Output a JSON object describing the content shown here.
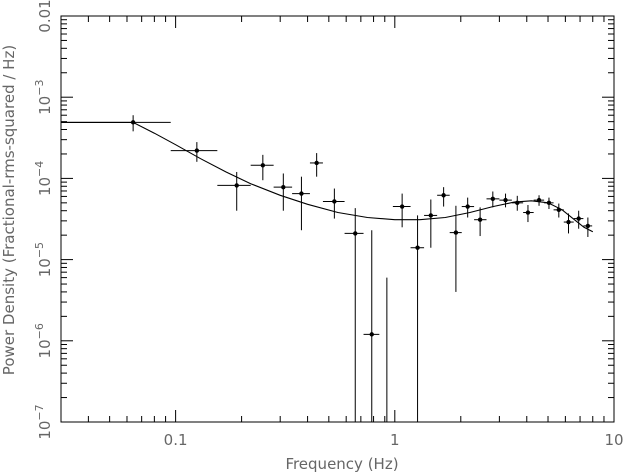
{
  "chart_data": {
    "type": "scatter",
    "title": "",
    "xlabel": "Frequency (Hz)",
    "ylabel": "Power Density (Fractional-rms-squared / Hz)",
    "xscale": "log",
    "yscale": "log",
    "xlim": [
      0.03,
      10
    ],
    "ylim": [
      1e-07,
      0.01
    ],
    "x_tick_labels": [
      {
        "value": 0.1,
        "label": "0.1"
      },
      {
        "value": 1,
        "label": "1"
      },
      {
        "value": 10,
        "label": "10"
      }
    ],
    "y_tick_labels": [
      {
        "value": 1e-07,
        "base": "10",
        "exp": "−7"
      },
      {
        "value": 1e-06,
        "base": "10",
        "exp": "−6"
      },
      {
        "value": 1e-05,
        "base": "10",
        "exp": "−5"
      },
      {
        "value": 0.0001,
        "base": "10",
        "exp": "−4"
      },
      {
        "value": 0.001,
        "base": "10",
        "exp": "−3"
      },
      {
        "value": 0.01,
        "base": "0.01",
        "exp": ""
      }
    ],
    "grid": false,
    "colors": {
      "data": "#000000",
      "axis": "#000000",
      "text": "#666666"
    },
    "points": [
      {
        "x": 0.064,
        "xlo": 0.03,
        "xhi": 0.095,
        "y": 0.00049,
        "ylo": 0.00038,
        "yhi": 0.0006
      },
      {
        "x": 0.125,
        "xlo": 0.095,
        "xhi": 0.155,
        "y": 0.00022,
        "ylo": 0.00016,
        "yhi": 0.00028
      },
      {
        "x": 0.19,
        "xlo": 0.155,
        "xhi": 0.22,
        "y": 8.2e-05,
        "ylo": 4e-05,
        "yhi": 0.00012
      },
      {
        "x": 0.25,
        "xlo": 0.22,
        "xhi": 0.28,
        "y": 0.000145,
        "ylo": 9.5e-05,
        "yhi": 0.000195
      },
      {
        "x": 0.31,
        "xlo": 0.28,
        "xhi": 0.34,
        "y": 7.8e-05,
        "ylo": 4e-05,
        "yhi": 0.000115
      },
      {
        "x": 0.375,
        "xlo": 0.34,
        "xhi": 0.41,
        "y": 6.5e-05,
        "ylo": 2.3e-05,
        "yhi": 0.000105
      },
      {
        "x": 0.44,
        "xlo": 0.41,
        "xhi": 0.47,
        "y": 0.000155,
        "ylo": 0.000105,
        "yhi": 0.000205
      },
      {
        "x": 0.53,
        "xlo": 0.47,
        "xhi": 0.59,
        "y": 5.2e-05,
        "ylo": 3.2e-05,
        "yhi": 7.5e-05
      },
      {
        "x": 0.66,
        "xlo": 0.59,
        "xhi": 0.72,
        "y": 2.1e-05,
        "ylo": 1e-07,
        "yhi": 4.3e-05
      },
      {
        "x": 0.785,
        "xlo": 0.72,
        "xhi": 0.85,
        "y": 1.2e-06,
        "ylo": 1e-07,
        "yhi": 2.3e-05
      },
      {
        "x": 0.92,
        "xlo": 0.92,
        "xhi": 0.92,
        "y": 3e-07,
        "ylo": 1e-07,
        "yhi": 6e-06,
        "marker": false
      },
      {
        "x": 1.08,
        "xlo": 0.98,
        "xhi": 1.18,
        "y": 4.5e-05,
        "ylo": 2.5e-05,
        "yhi": 6.5e-05
      },
      {
        "x": 1.27,
        "xlo": 1.18,
        "xhi": 1.36,
        "y": 1.4e-05,
        "ylo": 1e-07,
        "yhi": 3.5e-05
      },
      {
        "x": 1.46,
        "xlo": 1.36,
        "xhi": 1.56,
        "y": 3.5e-05,
        "ylo": 1.4e-05,
        "yhi": 5.5e-05
      },
      {
        "x": 1.67,
        "xlo": 1.56,
        "xhi": 1.78,
        "y": 6.2e-05,
        "ylo": 4.5e-05,
        "yhi": 7.8e-05
      },
      {
        "x": 1.9,
        "xlo": 1.78,
        "xhi": 2.02,
        "y": 2.15e-05,
        "ylo": 4e-06,
        "yhi": 4.6e-05
      },
      {
        "x": 2.15,
        "xlo": 2.02,
        "xhi": 2.3,
        "y": 4.5e-05,
        "ylo": 3.3e-05,
        "yhi": 5.8e-05
      },
      {
        "x": 2.45,
        "xlo": 2.3,
        "xhi": 2.62,
        "y": 3.1e-05,
        "ylo": 1.95e-05,
        "yhi": 4.4e-05
      },
      {
        "x": 2.8,
        "xlo": 2.62,
        "xhi": 3.0,
        "y": 5.6e-05,
        "ylo": 4.4e-05,
        "yhi": 6.9e-05
      },
      {
        "x": 3.2,
        "xlo": 3.0,
        "xhi": 3.42,
        "y": 5.4e-05,
        "ylo": 4.4e-05,
        "yhi": 6.5e-05
      },
      {
        "x": 3.62,
        "xlo": 3.42,
        "xhi": 3.85,
        "y": 5e-05,
        "ylo": 4e-05,
        "yhi": 6.1e-05
      },
      {
        "x": 4.05,
        "xlo": 3.85,
        "xhi": 4.3,
        "y": 3.8e-05,
        "ylo": 2.9e-05,
        "yhi": 4.7e-05
      },
      {
        "x": 4.55,
        "xlo": 4.3,
        "xhi": 4.8,
        "y": 5.4e-05,
        "ylo": 4.6e-05,
        "yhi": 6.2e-05
      },
      {
        "x": 5.05,
        "xlo": 4.8,
        "xhi": 5.3,
        "y": 5e-05,
        "ylo": 4.2e-05,
        "yhi": 5.8e-05
      },
      {
        "x": 5.6,
        "xlo": 5.3,
        "xhi": 5.9,
        "y": 4.1e-05,
        "ylo": 3.3e-05,
        "yhi": 4.9e-05
      },
      {
        "x": 6.2,
        "xlo": 5.9,
        "xhi": 6.55,
        "y": 2.9e-05,
        "ylo": 2.1e-05,
        "yhi": 3.7e-05
      },
      {
        "x": 6.9,
        "xlo": 6.55,
        "xhi": 7.25,
        "y": 3.2e-05,
        "ylo": 2.4e-05,
        "yhi": 4e-05
      },
      {
        "x": 7.6,
        "xlo": 7.25,
        "xhi": 7.95,
        "y": 2.6e-05,
        "ylo": 1.9e-05,
        "yhi": 3.3e-05
      }
    ],
    "model_curve": [
      {
        "x": 0.03,
        "y": 0.00049
      },
      {
        "x": 0.064,
        "y": 0.00049
      },
      {
        "x": 0.08,
        "y": 0.00036
      },
      {
        "x": 0.1,
        "y": 0.00026
      },
      {
        "x": 0.13,
        "y": 0.000175
      },
      {
        "x": 0.17,
        "y": 0.00012
      },
      {
        "x": 0.22,
        "y": 8.6e-05
      },
      {
        "x": 0.3,
        "y": 6.2e-05
      },
      {
        "x": 0.4,
        "y": 4.8e-05
      },
      {
        "x": 0.55,
        "y": 3.8e-05
      },
      {
        "x": 0.75,
        "y": 3.3e-05
      },
      {
        "x": 1.0,
        "y": 3.1e-05
      },
      {
        "x": 1.3,
        "y": 3.1e-05
      },
      {
        "x": 1.7,
        "y": 3.3e-05
      },
      {
        "x": 2.2,
        "y": 3.8e-05
      },
      {
        "x": 2.8,
        "y": 4.5e-05
      },
      {
        "x": 3.5,
        "y": 5.1e-05
      },
      {
        "x": 4.2,
        "y": 5.3e-05
      },
      {
        "x": 5.0,
        "y": 5e-05
      },
      {
        "x": 5.8,
        "y": 4.1e-05
      },
      {
        "x": 6.6,
        "y": 3.1e-05
      },
      {
        "x": 7.3,
        "y": 2.5e-05
      },
      {
        "x": 8.0,
        "y": 2.2e-05
      }
    ]
  }
}
